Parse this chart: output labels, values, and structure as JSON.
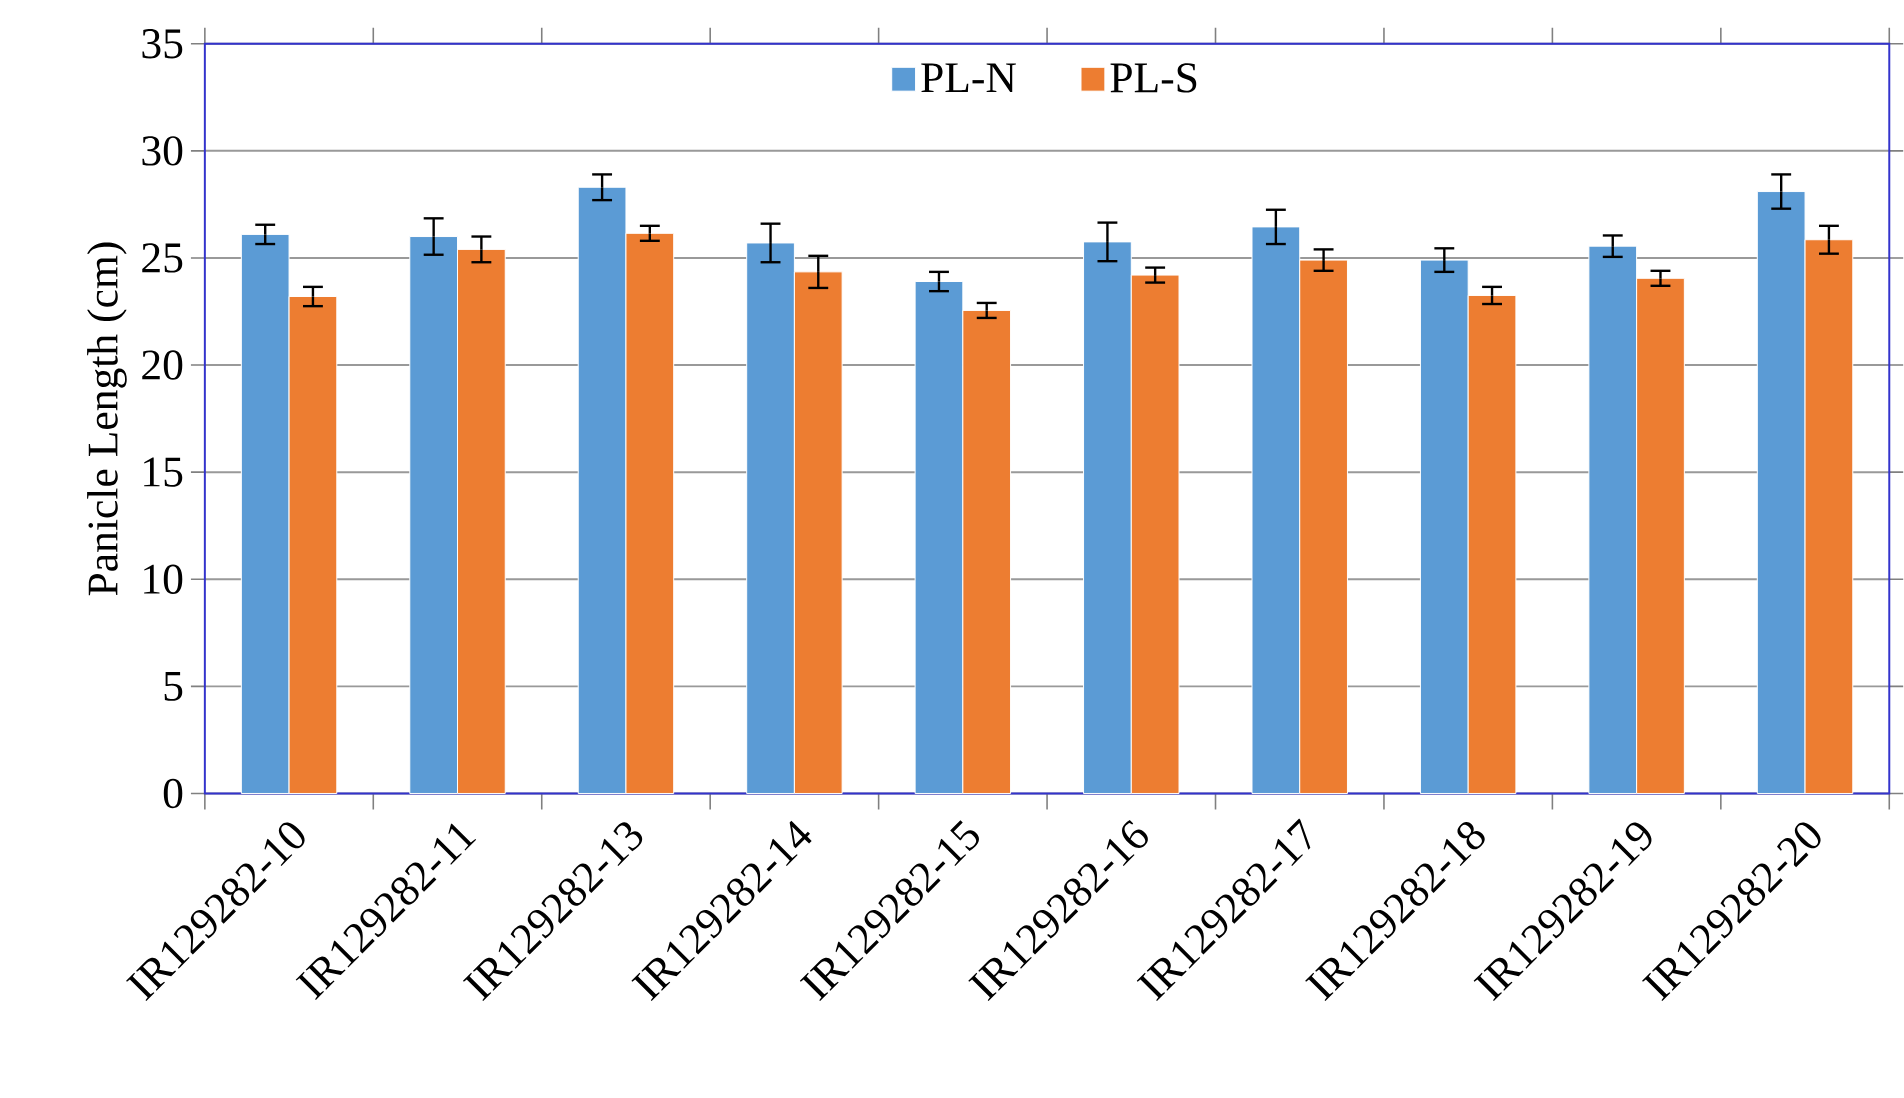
{
  "chart_data": {
    "type": "bar",
    "ylabel": "Panicle Length (cm)",
    "categories": [
      "IR129282-10",
      "IR129282-11",
      "IR129282-13",
      "IR129282-14",
      "IR129282-15",
      "IR129282-16",
      "IR129282-17",
      "IR129282-18",
      "IR129282-19",
      "IR129282-20"
    ],
    "series": [
      {
        "name": "PL-N",
        "color": "#5b9bd5",
        "values": [
          26.1,
          26.0,
          28.3,
          25.7,
          23.9,
          25.75,
          26.45,
          24.9,
          25.55,
          28.1
        ],
        "errors": [
          0.45,
          0.85,
          0.6,
          0.9,
          0.45,
          0.9,
          0.8,
          0.55,
          0.5,
          0.8
        ]
      },
      {
        "name": "PL-S",
        "color": "#ed7d31",
        "values": [
          23.2,
          25.4,
          26.15,
          24.35,
          22.55,
          24.2,
          24.9,
          23.25,
          24.05,
          25.85
        ],
        "errors": [
          0.45,
          0.6,
          0.35,
          0.75,
          0.35,
          0.35,
          0.5,
          0.4,
          0.35,
          0.65
        ]
      }
    ],
    "ylim": [
      0,
      35
    ],
    "yticks": [
      0,
      5,
      10,
      15,
      20,
      25,
      30,
      35
    ],
    "grid": "y",
    "legend": "top"
  }
}
